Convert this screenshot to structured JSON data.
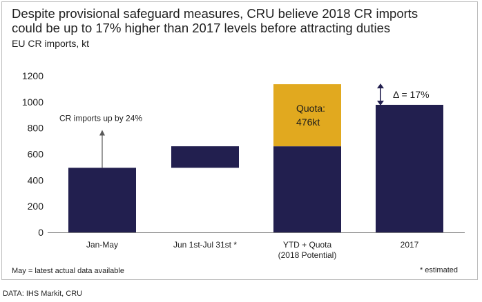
{
  "header": {
    "title_line1": "Despite provisional safeguard measures, CRU believe 2018 CR imports",
    "title_line2": "could be up to 17% higher than 2017 levels before attracting duties",
    "units": "EU CR imports, kt"
  },
  "footer": {
    "note_left": "May = latest actual data available",
    "note_right": "* estimated",
    "source": "DATA: IHS Markit, CRU"
  },
  "colors": {
    "navy": "#221f4f",
    "gold": "#e1a91f",
    "grid": "#d9d9d9",
    "axis": "#7f7f7f",
    "text": "#1f1f1f",
    "arrow": "#595959"
  },
  "chart_data": {
    "type": "bar",
    "title": "Despite provisional safeguard measures, CRU believe 2018 CR imports could be up to 17% higher than 2017 levels before attracting duties",
    "ylabel": "EU CR imports, kt",
    "ylim": [
      0,
      1200
    ],
    "yticks": [
      0,
      200,
      400,
      600,
      800,
      1000,
      1200
    ],
    "grid": false,
    "categories": [
      {
        "line1": "Jan-May",
        "line2": ""
      },
      {
        "line1": "Jun 1st-Jul 31st *",
        "line2": ""
      },
      {
        "line1": "YTD + Quota",
        "line2": "(2018 Potential)"
      },
      {
        "line1": "2017",
        "line2": ""
      }
    ],
    "bars": [
      {
        "segments": [
          {
            "from": 0,
            "to": 495,
            "color": "navy"
          }
        ]
      },
      {
        "segments": [
          {
            "from": 495,
            "to": 660,
            "color": "navy"
          }
        ]
      },
      {
        "segments": [
          {
            "from": 0,
            "to": 660,
            "color": "navy"
          },
          {
            "from": 660,
            "to": 1136,
            "color": "gold",
            "label_line1": "Quota:",
            "label_line2": "476kt"
          }
        ]
      },
      {
        "segments": [
          {
            "from": 0,
            "to": 978,
            "color": "navy"
          }
        ]
      }
    ],
    "annotations": {
      "growth_label": "CR imports up by 24%",
      "growth_arrow": {
        "category": 0,
        "from": 495,
        "to": 780
      },
      "delta_label": "Δ = 17%",
      "delta_arrow": {
        "between_categories": [
          2,
          3
        ],
        "from": 978,
        "to": 1136
      }
    }
  }
}
